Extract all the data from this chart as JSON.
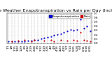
{
  "title": "Milwaukee Weather Evapotranspiration vs Rain per Day (Inches)",
  "legend_labels": [
    "Evapotranspiration",
    "Rain"
  ],
  "legend_colors": [
    "#0000ff",
    "#ff0000"
  ],
  "background_color": "#ffffff",
  "grid_color": "#888888",
  "x_labels": [
    "1/1",
    "1/8",
    "1/15",
    "1/22",
    "1/29",
    "2/5",
    "2/12",
    "2/19",
    "2/26",
    "3/5",
    "3/12",
    "3/19",
    "3/26",
    "4/2",
    "4/9",
    "4/16",
    "4/23",
    "4/30",
    "5/7",
    "5/14",
    "5/21",
    "5/28",
    "6/4",
    "6/11",
    "6/18",
    "6/25"
  ],
  "eto_values": [
    0.05,
    0.04,
    0.04,
    0.04,
    0.05,
    0.05,
    0.06,
    0.06,
    0.07,
    0.08,
    0.1,
    0.12,
    0.14,
    0.16,
    0.18,
    0.2,
    0.22,
    0.25,
    0.28,
    0.32,
    0.3,
    0.32,
    0.55,
    0.35,
    0.4,
    0.28
  ],
  "rain_values": [
    0.0,
    0.05,
    0.0,
    0.06,
    0.0,
    0.08,
    0.0,
    0.05,
    0.07,
    0.0,
    0.0,
    0.06,
    0.0,
    0.08,
    0.05,
    0.0,
    0.07,
    0.0,
    0.06,
    0.0,
    0.08,
    0.06,
    0.25,
    0.07,
    0.06,
    0.05
  ],
  "ylim": [
    0.0,
    0.7
  ],
  "ytick_values": [
    0.0,
    0.1,
    0.2,
    0.3,
    0.4,
    0.5,
    0.6,
    0.7
  ],
  "ytick_labels": [
    "0.0",
    "0.1",
    "0.2",
    "0.3",
    "0.4",
    "0.5",
    "0.6",
    "0.7"
  ],
  "title_fontsize": 4.5,
  "tick_fontsize": 3.0,
  "legend_fontsize": 3.0,
  "marker_size": 1.2,
  "linewidth": 0.0
}
